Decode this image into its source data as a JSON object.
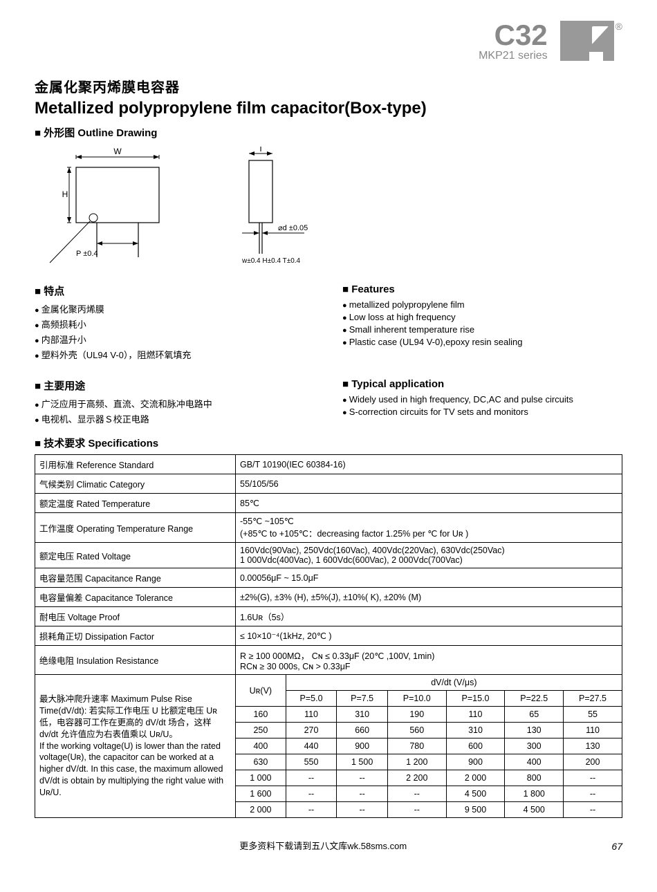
{
  "header": {
    "series_code": "C32",
    "series_name": "MKP21 series",
    "reg_mark": "®"
  },
  "title_cn": "金属化聚丙烯膜电容器",
  "title_en": "Metallized polypropylene film capacitor(Box-type)",
  "outline_heading": "外形图  Outline Drawing",
  "drawing": {
    "label_W": "W",
    "label_H": "H",
    "label_P": "P ±0.4",
    "label_T": "T",
    "label_d": "⌀d ±0.05",
    "tol_note": "w±0.4  H±0.4  T±0.4"
  },
  "features": {
    "heading_cn": "特点",
    "heading_en": "Features",
    "items_cn": [
      "金属化聚丙烯膜",
      "高频损耗小",
      "内部温升小",
      "塑料外壳（UL94 V-0），阻燃环氧填充"
    ],
    "items_en": [
      "metallized polypropylene film",
      "Low loss at high frequency",
      "Small inherent temperature rise",
      "Plastic case (UL94 V-0),epoxy resin sealing"
    ]
  },
  "applications": {
    "heading_cn": "主要用途",
    "heading_en": "Typical application",
    "items_cn": [
      "广泛应用于高频、直流、交流和脉冲电路中",
      "电视机、显示器Ｓ校正电路"
    ],
    "items_en": [
      "Widely used in high frequency, DC,AC and pulse circuits",
      "S-correction circuits for TV sets and monitors"
    ]
  },
  "specs_heading": "技术要求 Specifications",
  "specs": {
    "rows": [
      {
        "label": "引用标准 Reference Standard",
        "value": "GB/T 10190(IEC 60384-16)"
      },
      {
        "label": "气候类别 Climatic Category",
        "value": "55/105/56"
      },
      {
        "label": "额定温度 Rated Temperature",
        "value": "85℃"
      },
      {
        "label": "工作温度 Operating Temperature Range",
        "value": "-55℃ ~105℃\n(+85℃ to +105℃：decreasing factor 1.25% per ℃ for Uʀ )"
      },
      {
        "label": "额定电压 Rated Voltage",
        "value": "160Vdc(90Vac), 250Vdc(160Vac), 400Vdc(220Vac), 630Vdc(250Vac)\n1 000Vdc(400Vac), 1 600Vdc(600Vac), 2 000Vdc(700Vac)"
      },
      {
        "label": "电容量范围 Capacitance Range",
        "value": "0.00056μF ~ 15.0μF"
      },
      {
        "label": "电容量偏差 Capacitance Tolerance",
        "value": "±2%(G), ±3% (H), ±5%(J), ±10%( K), ±20% (M)"
      },
      {
        "label": "耐电压 Voltage Proof",
        "value": "1.6Uʀ（5s）"
      },
      {
        "label": "损耗角正切 Dissipation Factor",
        "value": "≤ 10×10⁻⁴(1kHz, 20℃ )"
      },
      {
        "label": "绝缘电阻 Insulation Resistance",
        "value": "R ≥ 100 000MΩ，  Cɴ ≤ 0.33μF          (20℃ ,100V, 1min)\nRCɴ ≥ 30 000s,     Cɴ  > 0.33μF"
      }
    ],
    "pulse": {
      "label": "最大脉冲爬升速率 Maximum Pulse Rise Time(dV/dt): 若实际工作电压 U 比额定电压 Uʀ 低，电容器可工作在更高的 dV/dt 场合，这样 dv/dt 允许值应为右表值乘以 Uʀ/U。\nIf the working voltage(U) is lower than the rated voltage(Uʀ), the capacitor can be worked at a higher dV/dt. In this case, the maximum allowed dV/dt is obtain by multiplying the right value with  Uʀ/U.",
      "dvdt_header": "dV/dt (V/μs)",
      "ur_header": "Uʀ(V)",
      "pitch_headers": [
        "P=5.0",
        "P=7.5",
        "P=10.0",
        "P=15.0",
        "P=22.5",
        "P=27.5"
      ],
      "rows": [
        {
          "ur": "160",
          "v": [
            "110",
            "310",
            "190",
            "110",
            "65",
            "55"
          ]
        },
        {
          "ur": "250",
          "v": [
            "270",
            "660",
            "560",
            "310",
            "130",
            "110"
          ]
        },
        {
          "ur": "400",
          "v": [
            "440",
            "900",
            "780",
            "600",
            "300",
            "130"
          ]
        },
        {
          "ur": "630",
          "v": [
            "550",
            "1 500",
            "1 200",
            "900",
            "400",
            "200"
          ]
        },
        {
          "ur": "1 000",
          "v": [
            "--",
            "--",
            "2 200",
            "2 000",
            "800",
            "--"
          ]
        },
        {
          "ur": "1 600",
          "v": [
            "--",
            "--",
            "--",
            "4 500",
            "1 800",
            "--"
          ]
        },
        {
          "ur": "2 000",
          "v": [
            "--",
            "--",
            "--",
            "9 500",
            "4 500",
            "--"
          ]
        }
      ]
    }
  },
  "footer": {
    "text": "更多资料下载请到五八文库wk.58sms.com",
    "page": "67"
  }
}
